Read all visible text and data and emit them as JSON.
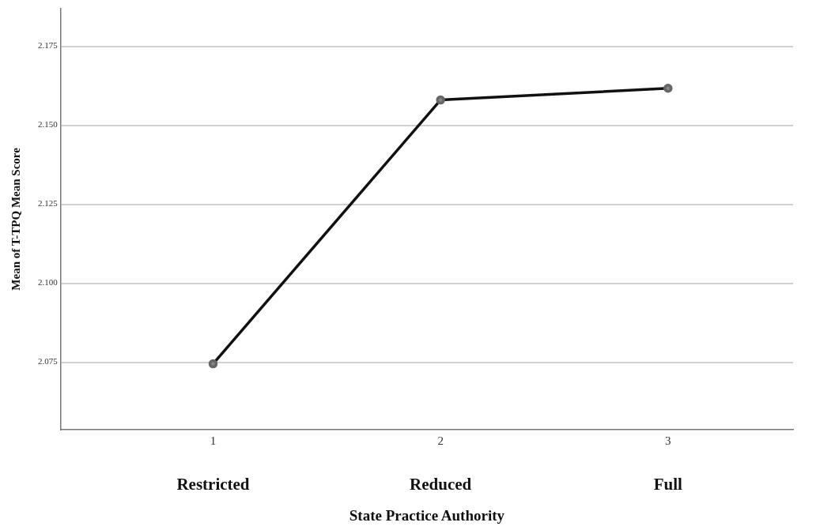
{
  "chart_data": {
    "type": "line",
    "xlabel": "State Practice Authority",
    "ylabel": "Mean of T-TPQ Mean Score",
    "x": [
      1,
      2,
      3
    ],
    "xlim": [
      0.33,
      3.55
    ],
    "xticks": [
      1,
      2,
      3
    ],
    "ylim": [
      2.0536,
      2.187
    ],
    "yticks": [
      {
        "value": 2.075,
        "label": "2.075"
      },
      {
        "value": 2.1,
        "label": "2.100"
      },
      {
        "value": 2.125,
        "label": "2.125"
      },
      {
        "value": 2.15,
        "label": "2.150"
      },
      {
        "value": 2.175,
        "label": "2.175"
      }
    ],
    "series": [
      {
        "color": "#111111",
        "values": [
          2.0745,
          2.158,
          2.1617
        ]
      }
    ],
    "annotations": [
      "Restricted",
      "Reduced",
      "Full"
    ],
    "grid": "y",
    "legend": false,
    "marker": "circle",
    "line_style": "solid"
  }
}
